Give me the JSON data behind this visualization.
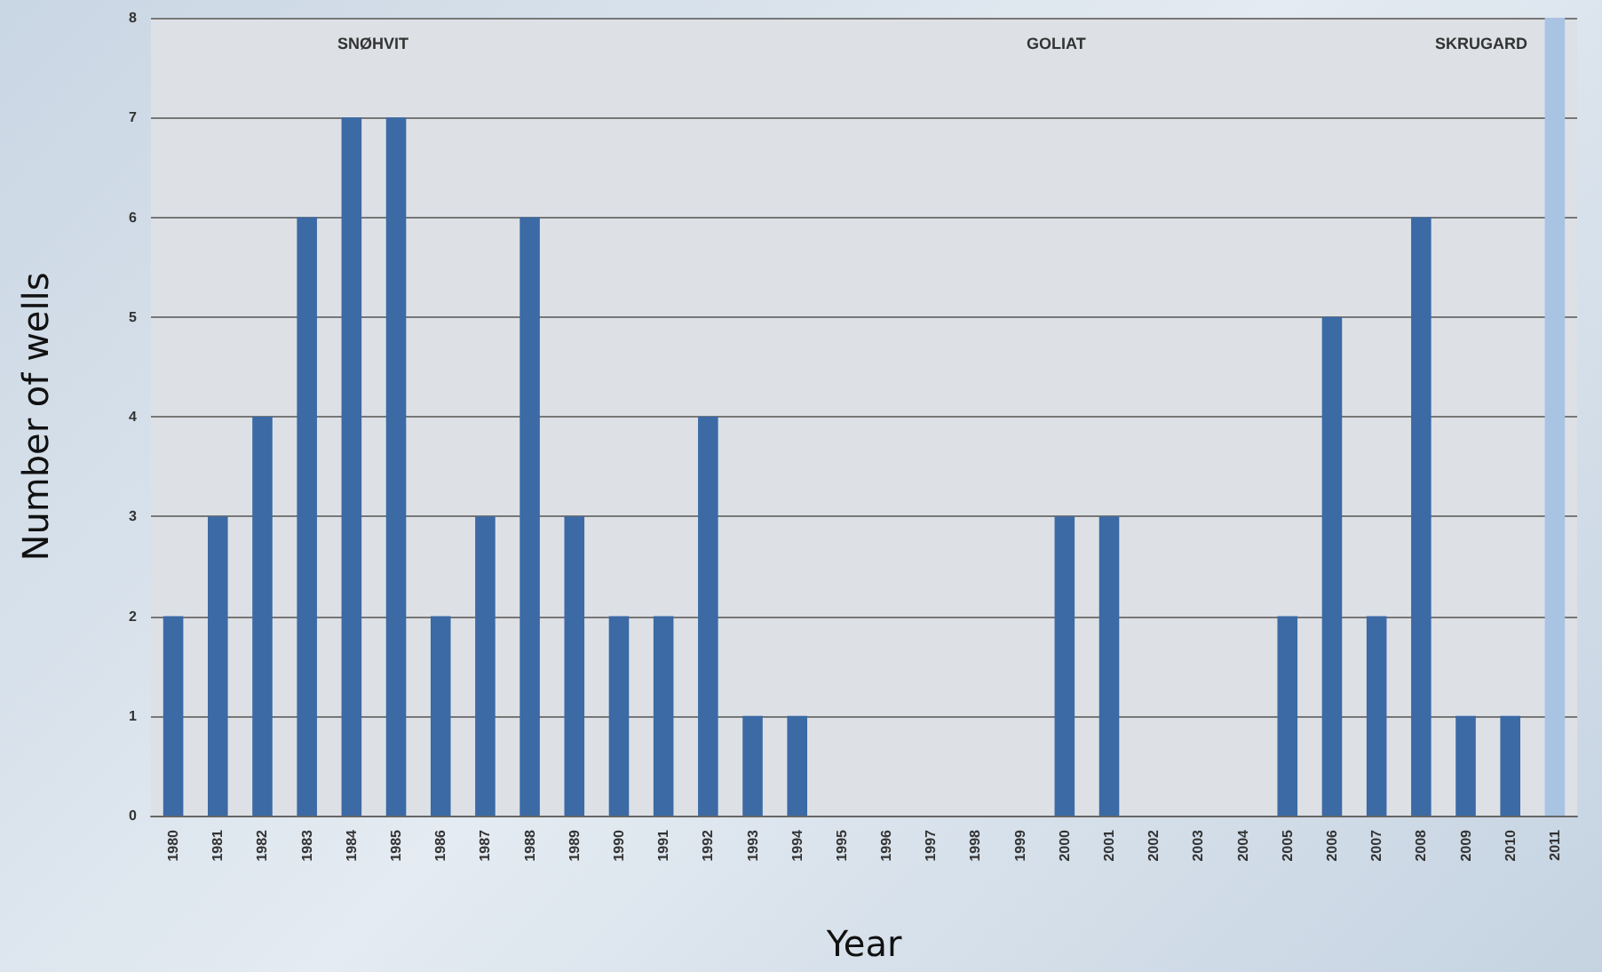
{
  "chart_data": {
    "type": "bar",
    "xlabel": "Year",
    "ylabel": "Number of wells",
    "categories": [
      "1980",
      "1981",
      "1982",
      "1983",
      "1984",
      "1985",
      "1986",
      "1987",
      "1988",
      "1989",
      "1990",
      "1991",
      "1992",
      "1993",
      "1994",
      "1995",
      "1996",
      "1997",
      "1998",
      "1999",
      "2000",
      "2001",
      "2002",
      "2003",
      "2004",
      "2005",
      "2006",
      "2007",
      "2008",
      "2009",
      "2010",
      "2011"
    ],
    "values": [
      2,
      3,
      4,
      6,
      7,
      7,
      2,
      3,
      6,
      3,
      2,
      2,
      4,
      1,
      1,
      0,
      0,
      0,
      0,
      0,
      3,
      3,
      0,
      0,
      0,
      2,
      5,
      2,
      6,
      1,
      1,
      8
    ],
    "colors": [
      "#3b6aa5",
      "#3b6aa5",
      "#3b6aa5",
      "#3b6aa5",
      "#3b6aa5",
      "#3b6aa5",
      "#3b6aa5",
      "#3b6aa5",
      "#3b6aa5",
      "#3b6aa5",
      "#3b6aa5",
      "#3b6aa5",
      "#3b6aa5",
      "#3b6aa5",
      "#3b6aa5",
      "#3b6aa5",
      "#3b6aa5",
      "#3b6aa5",
      "#3b6aa5",
      "#3b6aa5",
      "#3b6aa5",
      "#3b6aa5",
      "#3b6aa5",
      "#3b6aa5",
      "#3b6aa5",
      "#3b6aa5",
      "#3b6aa5",
      "#3b6aa5",
      "#3b6aa5",
      "#3b6aa5",
      "#3b6aa5",
      "#a9c3e3"
    ],
    "ylim": [
      0,
      8
    ],
    "yticks": [
      0,
      1,
      2,
      3,
      4,
      5,
      6,
      7,
      8
    ],
    "grid": "y",
    "annotations": [
      "SNØHVIT",
      "GOLIAT",
      "SKRUGARD"
    ]
  }
}
